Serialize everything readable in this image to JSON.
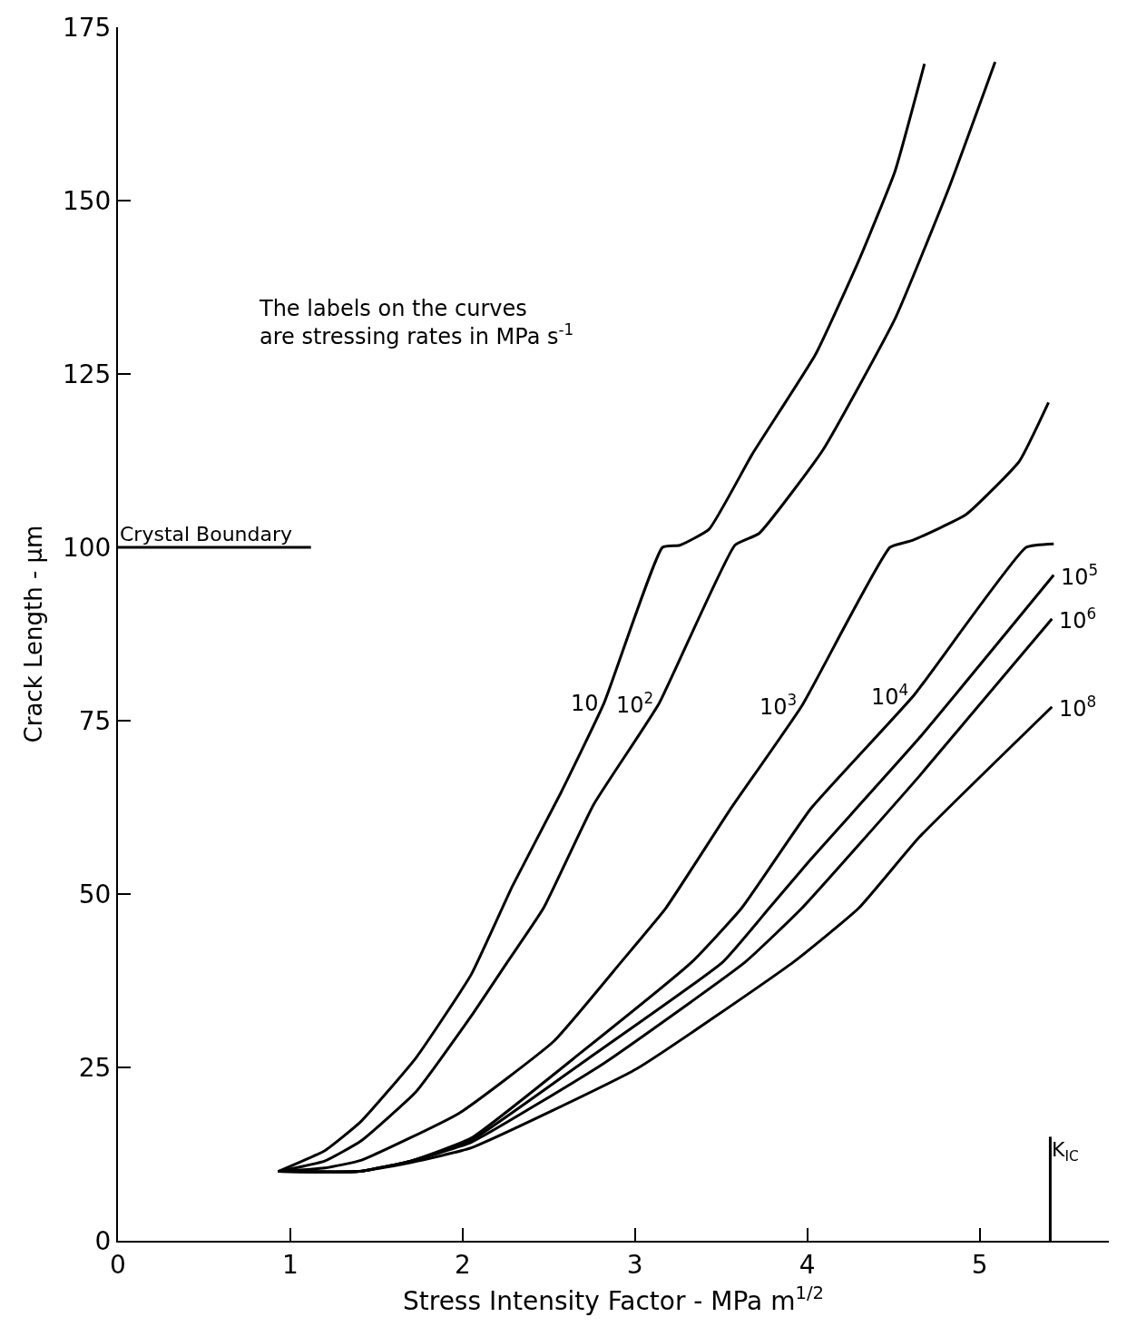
{
  "chart_data": {
    "type": "line",
    "xlabel": "Stress Intensity Factor - MPa m$^{1/2}$",
    "ylabel": "Crack Length - μm",
    "xlim": [
      0,
      5.75
    ],
    "ylim": [
      0,
      175
    ],
    "xticks": [
      0,
      1,
      2,
      3,
      4,
      5
    ],
    "yticks": [
      0,
      25,
      50,
      75,
      100,
      125,
      150,
      175
    ],
    "legend": false,
    "marker": "none",
    "line_style": "solid",
    "series": [
      {
        "color": "#000000",
        "x": [
          0.93,
          1.2,
          1.41,
          1.73,
          2.05,
          2.29,
          2.57,
          2.82,
          3.16,
          3.26,
          3.43,
          3.68,
          4.05,
          4.3,
          4.51,
          4.68
        ],
        "values": [
          10,
          13,
          17.2,
          26.4,
          38.4,
          51.2,
          64.6,
          77.5,
          100,
          100.3,
          102.6,
          113.4,
          127.9,
          141.4,
          154.3,
          169.7
        ]
      },
      {
        "color": "#000000",
        "x": [
          0.93,
          1.2,
          1.41,
          1.73,
          2.05,
          2.26,
          2.47,
          2.76,
          3.14,
          3.58,
          3.72,
          4.09,
          4.51,
          4.82,
          5.09
        ],
        "values": [
          10,
          11.5,
          14.4,
          21.5,
          32.4,
          40.2,
          48,
          62.9,
          77.5,
          100.3,
          102,
          114,
          133,
          151.7,
          170
        ]
      },
      {
        "color": "#000000",
        "x": [
          0.93,
          1.2,
          1.41,
          1.98,
          2.53,
          2.92,
          3.18,
          3.55,
          3.97,
          4.48,
          4.61,
          4.92,
          5.23,
          5.4
        ],
        "values": [
          10,
          10.5,
          11.6,
          18.4,
          28.8,
          40.2,
          48,
          62.1,
          77.2,
          100,
          101,
          104.7,
          112.4,
          120.9
        ]
      },
      {
        "color": "#000000",
        "x": [
          0.93,
          1.4,
          1.7,
          2.05,
          2.69,
          3.33,
          3.62,
          4.02,
          4.62,
          5.27,
          5.43
        ],
        "values": [
          10,
          10,
          11.5,
          14.8,
          27.2,
          40.2,
          48,
          62.3,
          78.7,
          100,
          100.5
        ]
      },
      {
        "color": "#000000",
        "x": [
          0.93,
          1.4,
          1.7,
          2.05,
          2.69,
          3.51,
          3.78,
          4.02,
          4.65,
          5.43
        ],
        "values": [
          10,
          10,
          11.5,
          14.5,
          25.6,
          40.2,
          48,
          55,
          72.5,
          96
        ]
      },
      {
        "color": "#000000",
        "x": [
          0.93,
          1.4,
          1.7,
          2.05,
          2.82,
          3.64,
          3.97,
          4.65,
          5.42
        ],
        "values": [
          10,
          10,
          11.5,
          14.2,
          25.6,
          40.2,
          48,
          67,
          89.7
        ]
      },
      {
        "color": "#000000",
        "x": [
          0.93,
          1.4,
          1.7,
          2.05,
          3.01,
          3.92,
          4.3,
          4.65,
          5.42
        ],
        "values": [
          10,
          10,
          11.3,
          13.4,
          24.8,
          40.2,
          48,
          58.2,
          77
        ]
      },
      {
        "name": "Crystal Boundary",
        "color": "#000000",
        "x": [
          0,
          1.12
        ],
        "values": [
          100,
          100
        ]
      },
      {
        "name": "K$_{IC}$",
        "color": "#000000",
        "x": [
          5.41,
          5.41
        ],
        "values": [
          0,
          15
        ]
      }
    ],
    "annotations": [
      "The labels on the curves\nare stressing rates in MPa s$^{-1}$",
      {
        "text": "10",
        "x": 2.82,
        "y": 77.5
      },
      {
        "text": "10$^{2}$",
        "x": 3.14,
        "y": 77.5
      },
      {
        "text": "10$^{3}$",
        "x": 3.97,
        "y": 77.2
      },
      {
        "text": "10$^{4}$",
        "x": 4.62,
        "y": 78.7
      },
      {
        "text": "10$^{5}$",
        "x": 5.43,
        "y": 96
      },
      {
        "text": "10$^{6}$",
        "x": 5.42,
        "y": 89.7
      },
      {
        "text": "10$^{8}$",
        "x": 5.42,
        "y": 77
      }
    ]
  }
}
